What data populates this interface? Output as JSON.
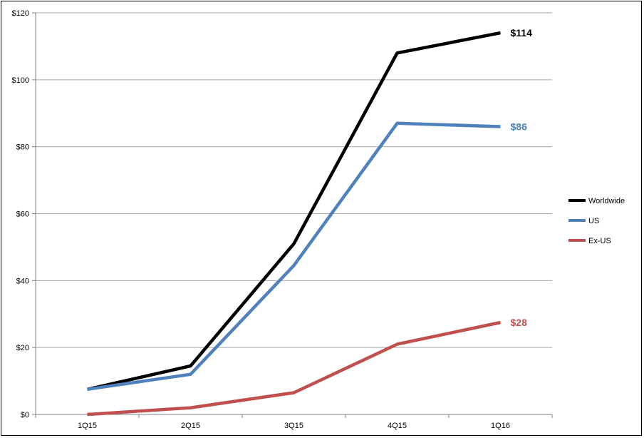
{
  "chart_data": {
    "type": "line",
    "title": "",
    "xlabel": "",
    "ylabel": "",
    "categories": [
      "1Q15",
      "2Q15",
      "3Q15",
      "4Q15",
      "1Q16"
    ],
    "ylim": [
      0,
      120
    ],
    "yticks": [
      0,
      20,
      40,
      60,
      80,
      100,
      120
    ],
    "ytick_labels": [
      "$0",
      "$20",
      "$40",
      "$60",
      "$80",
      "$100",
      "$120"
    ],
    "grid": true,
    "legend_position": "right",
    "series": [
      {
        "name": "Worldwide",
        "color": "#000000",
        "values": [
          7.5,
          14.5,
          51,
          108,
          114
        ],
        "end_label": "$114"
      },
      {
        "name": "US",
        "color": "#4f81bd",
        "values": [
          7.5,
          12,
          44.5,
          87,
          86
        ],
        "end_label": "$86"
      },
      {
        "name": "Ex-US",
        "color": "#c0504d",
        "values": [
          0,
          2,
          6.5,
          21,
          27.5
        ],
        "end_label": "$28"
      }
    ]
  }
}
